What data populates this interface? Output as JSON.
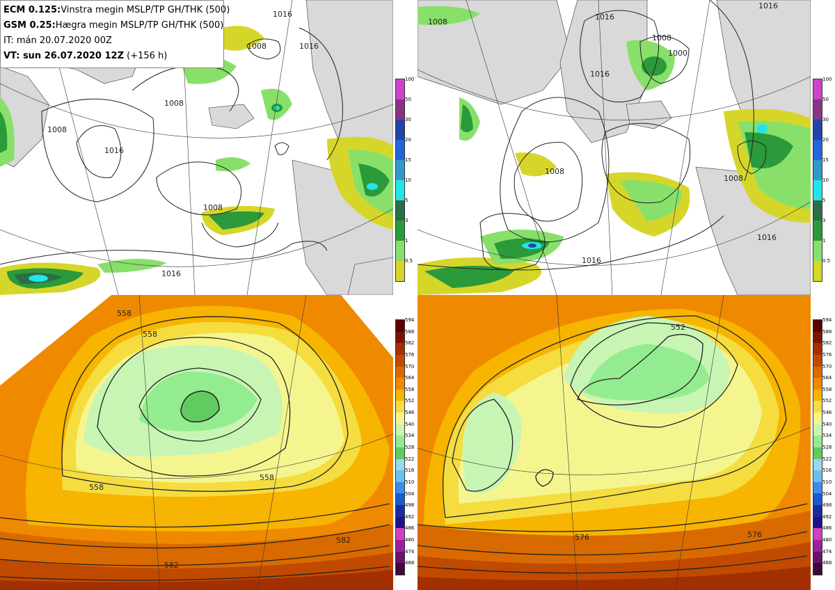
{
  "header": {
    "line1_bold": "ECM 0.125:",
    "line1_text": "Vinstra megin MSLP/TP GH/THK (500)",
    "line2_bold": "GSM 0.25:",
    "line2_text": "Hægra megin MSLP/TP GH/THK (500)",
    "line3_text": "IT: mán 20.07.2020 00Z",
    "line4_bold": "VT: sun 26.07.2020 12Z",
    "line4_text": "(+156 h)"
  },
  "precip_scale": {
    "labels": [
      "100",
      "50",
      "30",
      "20",
      "15",
      "10",
      "5",
      "3",
      "1",
      "0.5"
    ],
    "colors": [
      "#cc44cc",
      "#883388",
      "#2244aa",
      "#2266dd",
      "#3399cc",
      "#22e6e6",
      "#2a6e4a",
      "#2a9a3a",
      "#88e06a",
      "#d6d62a"
    ]
  },
  "thickness_scale": {
    "labels": [
      "594",
      "588",
      "582",
      "576",
      "570",
      "564",
      "558",
      "552",
      "546",
      "540",
      "534",
      "528",
      "522",
      "516",
      "510",
      "504",
      "498",
      "492",
      "486",
      "480",
      "474",
      "468"
    ],
    "colors": [
      "#5a0000",
      "#7a1400",
      "#a33000",
      "#c04a00",
      "#d96a00",
      "#ef8a00",
      "#f7b400",
      "#f5dd40",
      "#f5f590",
      "#c8f5b4",
      "#94ec90",
      "#60cc60",
      "#9ad8f0",
      "#6cc0f0",
      "#3c8cf0",
      "#1a5ad0",
      "#1a2aa0",
      "#22108a",
      "#d040c0",
      "#9a20a0",
      "#6a1070",
      "#40083a"
    ]
  },
  "mslp_labels": {
    "left": [
      "1016",
      "1008",
      "1008",
      "1008",
      "1016",
      "1016",
      "1008",
      "1016"
    ],
    "right": [
      "1016",
      "1008",
      "1008",
      "1000",
      "1016",
      "1008",
      "1008",
      "1016",
      "1016",
      "1016"
    ]
  },
  "gh_labels": {
    "left": [
      "558",
      "558",
      "558",
      "558",
      "582",
      "582"
    ],
    "right": [
      "552",
      "576",
      "576"
    ]
  },
  "colors": {
    "sea": "#ffffff",
    "land": "#d9d9d9",
    "coast": "#333333",
    "contour": "#222222"
  }
}
